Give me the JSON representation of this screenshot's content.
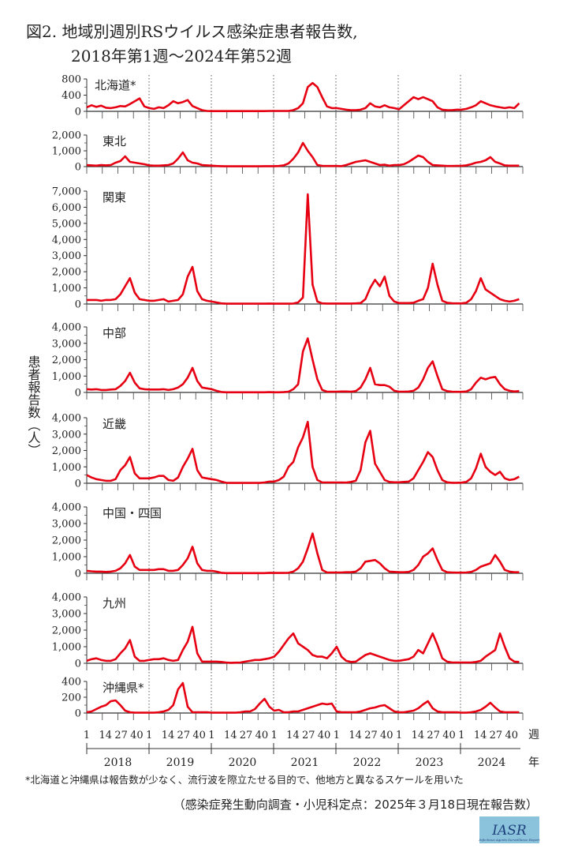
{
  "header": {
    "title_line1": "図2. 地域別週別RSウイルス感染症患者報告数,",
    "title_line2": "2018年第1週～2024年第52週"
  },
  "footnote": "*北海道と沖縄県は報告数が少なく、流行波を際立たせる目的で、他地方と異なるスケールを用いた",
  "source": "（感染症発生動向調査・小児科定点：2025年３月18日現在報告数）",
  "logo": {
    "text": "IASR",
    "subtitle": "Infectious Agents Surveillance Report",
    "bg_color": "#8cc3dc"
  },
  "chart_data": {
    "type": "line",
    "title": "図2. 地域別週別RSウイルス感染症患者報告数, 2018年第1週～2024年第52週",
    "ylabel": "患者報告数（人）",
    "xlabel_week": "週",
    "xlabel_year": "年",
    "week_ticks": [
      "1",
      "14",
      "27",
      "40"
    ],
    "years": [
      "2018",
      "2019",
      "2020",
      "2021",
      "2022",
      "2023",
      "2024"
    ],
    "sample_weeks": [
      1,
      5,
      9,
      13,
      17,
      21,
      25,
      29,
      33,
      37,
      41,
      45,
      49
    ],
    "line_color": "#e60012",
    "panels": [
      {
        "name": "北海道*",
        "ylim": [
          0,
          800
        ],
        "ytick_values": [
          0,
          400,
          800
        ],
        "ytick_labels": [
          "0",
          "400",
          "800"
        ],
        "values": [
          [
            100,
            150,
            110,
            140,
            90,
            80,
            100,
            130,
            120,
            180,
            250,
            320,
            120
          ],
          [
            80,
            60,
            100,
            80,
            150,
            250,
            200,
            230,
            280,
            130,
            80,
            30,
            10
          ],
          [
            5,
            5,
            5,
            5,
            5,
            5,
            5,
            5,
            5,
            5,
            5,
            5,
            10
          ],
          [
            10,
            10,
            10,
            10,
            30,
            80,
            200,
            600,
            700,
            600,
            350,
            120,
            80
          ],
          [
            80,
            60,
            40,
            30,
            30,
            40,
            80,
            200,
            120,
            100,
            150,
            100,
            80
          ],
          [
            50,
            150,
            250,
            350,
            300,
            350,
            300,
            250,
            100,
            40,
            30,
            30,
            40
          ],
          [
            40,
            60,
            100,
            150,
            250,
            200,
            150,
            120,
            100,
            80,
            100,
            80,
            200
          ]
        ]
      },
      {
        "name": "東北",
        "ylim": [
          0,
          2000
        ],
        "ytick_values": [
          0,
          1000,
          2000
        ],
        "ytick_labels": [
          "0",
          "1,000",
          "2,000"
        ],
        "values": [
          [
            100,
            80,
            60,
            100,
            80,
            100,
            250,
            350,
            650,
            300,
            250,
            200,
            150
          ],
          [
            80,
            60,
            60,
            80,
            100,
            200,
            500,
            900,
            400,
            250,
            200,
            100,
            80
          ],
          [
            60,
            40,
            30,
            20,
            20,
            20,
            20,
            20,
            20,
            20,
            20,
            30,
            30
          ],
          [
            30,
            40,
            80,
            200,
            500,
            900,
            1500,
            1000,
            600,
            100,
            50,
            40,
            40
          ],
          [
            40,
            30,
            100,
            200,
            300,
            350,
            400,
            300,
            200,
            100,
            120,
            60,
            100
          ],
          [
            100,
            150,
            300,
            500,
            700,
            600,
            300,
            100,
            80,
            60,
            40,
            40,
            50
          ],
          [
            50,
            80,
            150,
            250,
            300,
            400,
            600,
            300,
            200,
            80,
            60,
            60,
            60
          ]
        ]
      },
      {
        "name": "関東",
        "ylim": [
          0,
          7000
        ],
        "ytick_values": [
          0,
          1000,
          2000,
          3000,
          4000,
          5000,
          6000,
          7000
        ],
        "ytick_labels": [
          "0",
          "1,000",
          "2,000",
          "3,000",
          "4,000",
          "5,000",
          "6,000",
          "7,000"
        ],
        "values": [
          [
            250,
            250,
            250,
            200,
            250,
            250,
            300,
            600,
            1100,
            1600,
            700,
            300,
            250
          ],
          [
            200,
            200,
            250,
            300,
            150,
            200,
            250,
            600,
            1700,
            2300,
            800,
            300,
            200
          ],
          [
            150,
            100,
            40,
            20,
            20,
            20,
            20,
            20,
            20,
            20,
            20,
            20,
            30
          ],
          [
            20,
            20,
            20,
            20,
            30,
            100,
            400,
            6800,
            1200,
            150,
            40,
            30,
            30
          ],
          [
            30,
            30,
            30,
            30,
            40,
            60,
            300,
            1000,
            1500,
            1100,
            1700,
            500,
            150
          ],
          [
            60,
            60,
            60,
            80,
            200,
            300,
            1000,
            2500,
            1200,
            200,
            80,
            50,
            40
          ],
          [
            40,
            80,
            300,
            800,
            1600,
            900,
            700,
            500,
            300,
            200,
            150,
            200,
            300
          ]
        ]
      },
      {
        "name": "中部",
        "ylim": [
          0,
          4000
        ],
        "ytick_values": [
          0,
          1000,
          2000,
          3000,
          4000
        ],
        "ytick_labels": [
          "0",
          "1,000",
          "2,000",
          "3,000",
          "4,000"
        ],
        "values": [
          [
            200,
            180,
            200,
            150,
            150,
            180,
            200,
            400,
            700,
            1200,
            600,
            250,
            200
          ],
          [
            180,
            180,
            180,
            200,
            150,
            200,
            300,
            500,
            900,
            1500,
            700,
            300,
            250
          ],
          [
            200,
            100,
            30,
            10,
            10,
            10,
            10,
            10,
            10,
            10,
            10,
            10,
            20
          ],
          [
            10,
            10,
            20,
            50,
            200,
            500,
            2500,
            3300,
            2000,
            800,
            150,
            50,
            50
          ],
          [
            50,
            60,
            60,
            50,
            80,
            300,
            800,
            1500,
            500,
            450,
            450,
            350,
            100
          ],
          [
            50,
            50,
            60,
            100,
            300,
            800,
            1500,
            1900,
            1000,
            200,
            80,
            50,
            40
          ],
          [
            40,
            60,
            200,
            600,
            900,
            800,
            900,
            950,
            500,
            200,
            100,
            60,
            80
          ]
        ]
      },
      {
        "name": "近畿",
        "ylim": [
          0,
          4000
        ],
        "ytick_values": [
          0,
          1000,
          2000,
          3000,
          4000
        ],
        "ytick_labels": [
          "0",
          "1,000",
          "2,000",
          "3,000",
          "4,000"
        ],
        "values": [
          [
            500,
            350,
            250,
            200,
            150,
            150,
            250,
            800,
            1100,
            1600,
            600,
            300,
            300
          ],
          [
            300,
            350,
            450,
            450,
            200,
            150,
            350,
            1000,
            1500,
            2100,
            800,
            350,
            300
          ],
          [
            250,
            200,
            100,
            30,
            20,
            20,
            20,
            20,
            20,
            20,
            20,
            50,
            100
          ],
          [
            100,
            200,
            400,
            1000,
            1300,
            2200,
            2800,
            3750,
            1000,
            200,
            50,
            50,
            50
          ],
          [
            50,
            50,
            40,
            80,
            150,
            800,
            2500,
            3200,
            1200,
            700,
            200,
            80,
            60
          ],
          [
            60,
            80,
            100,
            300,
            800,
            1300,
            1900,
            1600,
            800,
            200,
            60,
            30,
            30
          ],
          [
            40,
            80,
            300,
            900,
            1800,
            1000,
            700,
            500,
            700,
            300,
            200,
            250,
            400
          ]
        ]
      },
      {
        "name": "中国・四国",
        "ylim": [
          0,
          4000
        ],
        "ytick_values": [
          0,
          1000,
          2000,
          3000,
          4000
        ],
        "ytick_labels": [
          "0",
          "1,000",
          "2,000",
          "3,000",
          "4,000"
        ],
        "values": [
          [
            150,
            120,
            100,
            100,
            80,
            100,
            150,
            300,
            600,
            1100,
            400,
            200,
            200
          ],
          [
            200,
            200,
            250,
            250,
            150,
            150,
            200,
            500,
            900,
            1600,
            600,
            200,
            150
          ],
          [
            150,
            100,
            30,
            10,
            10,
            10,
            10,
            10,
            10,
            10,
            10,
            10,
            30
          ],
          [
            20,
            20,
            20,
            30,
            100,
            300,
            700,
            1500,
            2400,
            1200,
            200,
            50,
            50
          ],
          [
            50,
            50,
            60,
            60,
            100,
            300,
            700,
            750,
            800,
            600,
            300,
            100,
            80
          ],
          [
            60,
            60,
            80,
            200,
            500,
            1000,
            1200,
            1500,
            800,
            200,
            60,
            50,
            40
          ],
          [
            40,
            50,
            80,
            200,
            400,
            500,
            600,
            1100,
            700,
            200,
            100,
            60,
            60
          ]
        ]
      },
      {
        "name": "九州",
        "ylim": [
          0,
          4000
        ],
        "ytick_values": [
          0,
          1000,
          2000,
          3000,
          4000
        ],
        "ytick_labels": [
          "0",
          "1,000",
          "2,000",
          "3,000",
          "4,000"
        ],
        "values": [
          [
            150,
            250,
            300,
            200,
            150,
            150,
            250,
            600,
            900,
            1400,
            400,
            150,
            150
          ],
          [
            200,
            250,
            250,
            300,
            200,
            150,
            200,
            800,
            1300,
            2200,
            600,
            100,
            100
          ],
          [
            100,
            100,
            80,
            50,
            30,
            40,
            50,
            100,
            150,
            200,
            200,
            250,
            300
          ],
          [
            400,
            700,
            1100,
            1500,
            1800,
            1200,
            1000,
            800,
            500,
            400,
            400,
            300,
            600
          ],
          [
            1000,
            400,
            150,
            80,
            100,
            300,
            500,
            600,
            500,
            400,
            300,
            200,
            150
          ],
          [
            150,
            200,
            250,
            400,
            800,
            600,
            1200,
            1800,
            1100,
            300,
            100,
            50,
            50
          ],
          [
            50,
            50,
            50,
            80,
            150,
            400,
            600,
            800,
            1800,
            1000,
            300,
            100,
            80
          ]
        ]
      },
      {
        "name": "沖縄県*",
        "ylim": [
          0,
          400
        ],
        "ytick_values": [
          0,
          200,
          400
        ],
        "ytick_labels": [
          "0",
          "200",
          "400"
        ],
        "values": [
          [
            10,
            20,
            50,
            80,
            100,
            150,
            160,
            100,
            30,
            10,
            5,
            5,
            5
          ],
          [
            5,
            5,
            10,
            20,
            40,
            100,
            300,
            380,
            80,
            10,
            10,
            10,
            10
          ],
          [
            5,
            5,
            5,
            5,
            5,
            5,
            10,
            20,
            20,
            50,
            120,
            180,
            80
          ],
          [
            30,
            40,
            10,
            10,
            20,
            20,
            40,
            60,
            80,
            100,
            120,
            110,
            120
          ],
          [
            20,
            10,
            10,
            10,
            10,
            20,
            40,
            60,
            70,
            90,
            100,
            60,
            20
          ],
          [
            10,
            10,
            20,
            30,
            60,
            110,
            150,
            60,
            20,
            10,
            10,
            10,
            10
          ],
          [
            5,
            5,
            10,
            20,
            40,
            80,
            130,
            70,
            20,
            10,
            10,
            10,
            10
          ]
        ]
      }
    ]
  }
}
